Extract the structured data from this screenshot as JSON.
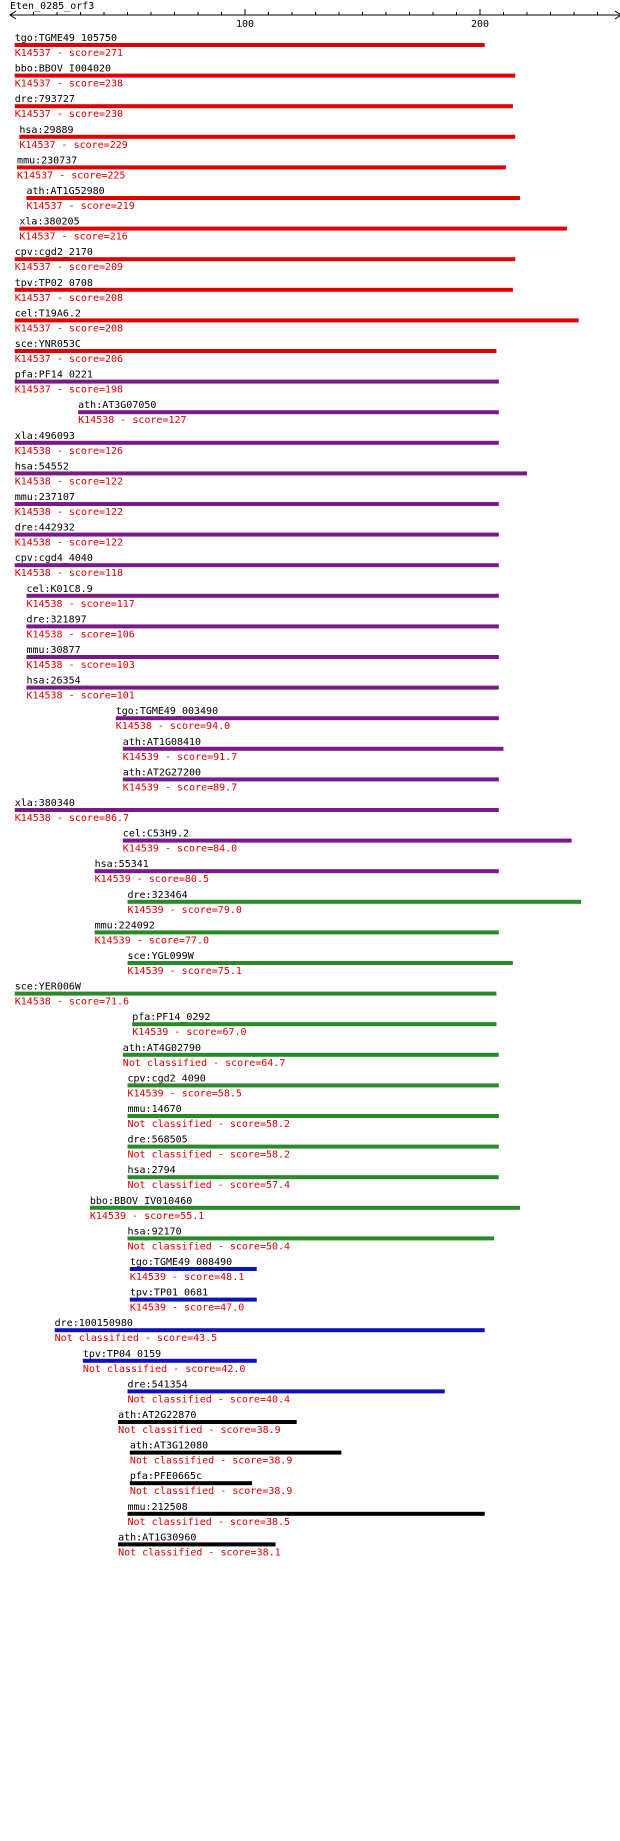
{
  "chart_data": {
    "type": "bar",
    "title": "Eten_0285_orf3",
    "x_axis": {
      "tick_labels": [
        "100",
        "200"
      ],
      "ticks": [
        100,
        200
      ],
      "minor_step": 10,
      "range": [
        0,
        260
      ]
    },
    "colors": {
      "red": "#e00000",
      "purple": "#7a1a8a",
      "green": "#2a8a2a",
      "blue": "#1010c0",
      "black": "#000000"
    },
    "hits": [
      {
        "gene": "tgo:TGME49_105750",
        "label": "K14537 - score=271",
        "start": 2,
        "end": 202,
        "color": "red"
      },
      {
        "gene": "bbo:BBOV_I004020",
        "label": "K14537 - score=238",
        "start": 2,
        "end": 215,
        "color": "red"
      },
      {
        "gene": "dre:793727",
        "label": "K14537 - score=230",
        "start": 2,
        "end": 214,
        "color": "red"
      },
      {
        "gene": "hsa:29889",
        "label": "K14537 - score=229",
        "start": 4,
        "end": 215,
        "color": "red"
      },
      {
        "gene": "mmu:230737",
        "label": "K14537 - score=225",
        "start": 3,
        "end": 211,
        "color": "red"
      },
      {
        "gene": "ath:AT1G52980",
        "label": "K14537 - score=219",
        "start": 7,
        "end": 217,
        "color": "red"
      },
      {
        "gene": "xla:380205",
        "label": "K14537 - score=216",
        "start": 4,
        "end": 237,
        "color": "red"
      },
      {
        "gene": "cpv:cgd2_2170",
        "label": "K14537 - score=209",
        "start": 2,
        "end": 215,
        "color": "red"
      },
      {
        "gene": "tpv:TP02_0708",
        "label": "K14537 - score=208",
        "start": 2,
        "end": 214,
        "color": "red"
      },
      {
        "gene": "cel:T19A6.2",
        "label": "K14537 - score=208",
        "start": 2,
        "end": 242,
        "color": "red"
      },
      {
        "gene": "sce:YNR053C",
        "label": "K14537 - score=206",
        "start": 2,
        "end": 207,
        "color": "red"
      },
      {
        "gene": "pfa:PF14_0221",
        "label": "K14537 - score=198",
        "start": 2,
        "end": 208,
        "color": "purple"
      },
      {
        "gene": "ath:AT3G07050",
        "label": "K14538 - score=127",
        "start": 29,
        "end": 208,
        "color": "purple"
      },
      {
        "gene": "xla:496093",
        "label": "K14538 - score=126",
        "start": 2,
        "end": 208,
        "color": "purple"
      },
      {
        "gene": "hsa:54552",
        "label": "K14538 - score=122",
        "start": 2,
        "end": 220,
        "color": "purple"
      },
      {
        "gene": "mmu:237107",
        "label": "K14538 - score=122",
        "start": 2,
        "end": 208,
        "color": "purple"
      },
      {
        "gene": "dre:442932",
        "label": "K14538 - score=122",
        "start": 2,
        "end": 208,
        "color": "purple"
      },
      {
        "gene": "cpv:cgd4_4040",
        "label": "K14538 - score=118",
        "start": 2,
        "end": 208,
        "color": "purple"
      },
      {
        "gene": "cel:K01C8.9",
        "label": "K14538 - score=117",
        "start": 7,
        "end": 208,
        "color": "purple"
      },
      {
        "gene": "dre:321897",
        "label": "K14538 - score=106",
        "start": 7,
        "end": 208,
        "color": "purple"
      },
      {
        "gene": "mmu:30877",
        "label": "K14538 - score=103",
        "start": 7,
        "end": 208,
        "color": "purple"
      },
      {
        "gene": "hsa:26354",
        "label": "K14538 - score=101",
        "start": 7,
        "end": 208,
        "color": "purple"
      },
      {
        "gene": "tgo:TGME49_003490",
        "label": "K14538 - score=94.0",
        "start": 45,
        "end": 208,
        "color": "purple"
      },
      {
        "gene": "ath:AT1G08410",
        "label": "K14539 - score=91.7",
        "start": 48,
        "end": 210,
        "color": "purple"
      },
      {
        "gene": "ath:AT2G27200",
        "label": "K14539 - score=89.7",
        "start": 48,
        "end": 208,
        "color": "purple"
      },
      {
        "gene": "xla:380340",
        "label": "K14538 - score=86.7",
        "start": 2,
        "end": 208,
        "color": "purple"
      },
      {
        "gene": "cel:C53H9.2",
        "label": "K14539 - score=84.0",
        "start": 48,
        "end": 239,
        "color": "purple"
      },
      {
        "gene": "hsa:55341",
        "label": "K14539 - score=80.5",
        "start": 36,
        "end": 208,
        "color": "purple"
      },
      {
        "gene": "dre:323464",
        "label": "K14539 - score=79.0",
        "start": 50,
        "end": 243,
        "color": "green"
      },
      {
        "gene": "mmu:224092",
        "label": "K14539 - score=77.0",
        "start": 36,
        "end": 208,
        "color": "green"
      },
      {
        "gene": "sce:YGL099W",
        "label": "K14539 - score=75.1",
        "start": 50,
        "end": 214,
        "color": "green"
      },
      {
        "gene": "sce:YER006W",
        "label": "K14538 - score=71.6",
        "start": 2,
        "end": 207,
        "color": "green"
      },
      {
        "gene": "pfa:PF14_0292",
        "label": "K14539 - score=67.0",
        "start": 52,
        "end": 207,
        "color": "green"
      },
      {
        "gene": "ath:AT4G02790",
        "label": "Not classified - score=64.7",
        "start": 48,
        "end": 208,
        "color": "green"
      },
      {
        "gene": "cpv:cgd2_4090",
        "label": "K14539 - score=58.5",
        "start": 50,
        "end": 208,
        "color": "green"
      },
      {
        "gene": "mmu:14670",
        "label": "Not classified - score=58.2",
        "start": 50,
        "end": 208,
        "color": "green"
      },
      {
        "gene": "dre:568505",
        "label": "Not classified - score=58.2",
        "start": 50,
        "end": 208,
        "color": "green"
      },
      {
        "gene": "hsa:2794",
        "label": "Not classified - score=57.4",
        "start": 50,
        "end": 208,
        "color": "green"
      },
      {
        "gene": "bbo:BBOV_IV010460",
        "label": "K14539 - score=55.1",
        "start": 34,
        "end": 217,
        "color": "green"
      },
      {
        "gene": "hsa:92170",
        "label": "Not classified - score=50.4",
        "start": 50,
        "end": 206,
        "color": "green"
      },
      {
        "gene": "tgo:TGME49_008490",
        "label": "K14539 - score=48.1",
        "start": 51,
        "end": 105,
        "color": "blue"
      },
      {
        "gene": "tpv:TP01_0681",
        "label": "K14539 - score=47.0",
        "start": 51,
        "end": 105,
        "color": "blue"
      },
      {
        "gene": "dre:100150980",
        "label": "Not classified - score=43.5",
        "start": 19,
        "end": 202,
        "color": "blue"
      },
      {
        "gene": "tpv:TP04_0159",
        "label": "Not classified - score=42.0",
        "start": 31,
        "end": 105,
        "color": "blue"
      },
      {
        "gene": "dre:541354",
        "label": "Not classified - score=40.4",
        "start": 50,
        "end": 185,
        "color": "blue"
      },
      {
        "gene": "ath:AT2G22870",
        "label": "Not classified - score=38.9",
        "start": 46,
        "end": 122,
        "color": "black"
      },
      {
        "gene": "ath:AT3G12080",
        "label": "Not classified - score=38.9",
        "start": 51,
        "end": 141,
        "color": "black"
      },
      {
        "gene": "pfa:PFE0665c",
        "label": "Not classified - score=38.9",
        "start": 51,
        "end": 103,
        "color": "black"
      },
      {
        "gene": "mmu:212508",
        "label": "Not classified - score=38.5",
        "start": 50,
        "end": 202,
        "color": "black"
      },
      {
        "gene": "ath:AT1G30960",
        "label": "Not classified - score=38.1",
        "start": 46,
        "end": 113,
        "color": "black"
      }
    ]
  }
}
